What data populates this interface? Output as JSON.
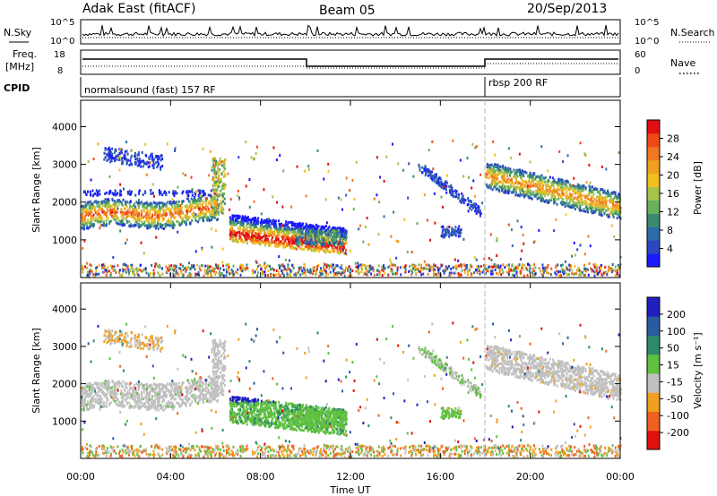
{
  "header": {
    "station": "Adak East (fitACF)",
    "beam": "Beam 05",
    "date": "20/Sep/2013"
  },
  "top_panels": {
    "nsky_label": "N.Sky",
    "nsearch_label": "N.Search",
    "nsky_ticks": [
      "10^5",
      "10^0"
    ],
    "nsearch_ticks": [
      "10^5",
      "10^0"
    ],
    "freq_label": "Freq.",
    "freq_unit": "[MHz]",
    "freq_ticks": [
      "18",
      "8"
    ],
    "nave_label": "Nave",
    "nave_ticks": [
      "60",
      "0"
    ],
    "cpid_label": "CPID",
    "cpid_modes": [
      "normalsound (fast) 157 RF",
      "rbsp 200 RF"
    ]
  },
  "chart_data": [
    {
      "type": "heatmap",
      "name": "power",
      "xlabel": "Time UT",
      "ylabel": "Slant Range [km]",
      "x_ticks": [
        "00:00",
        "04:00",
        "08:00",
        "12:00",
        "16:00",
        "20:00",
        "00:00"
      ],
      "y_ticks": [
        "1000",
        "2000",
        "3000",
        "4000"
      ],
      "ylim": [
        0,
        4700
      ],
      "colorbar": {
        "label": "Power [dB]",
        "ticks": [
          "4",
          "8",
          "12",
          "16",
          "20",
          "24",
          "28"
        ],
        "colors": [
          "#1a1aff",
          "#2a46c0",
          "#2f6aa8",
          "#3a8a70",
          "#67b25a",
          "#a7c34a",
          "#f0c020",
          "#f0a020",
          "#f07820",
          "#f04a18",
          "#e01010"
        ]
      },
      "regions": [
        {
          "t0": 0.0,
          "t1": 6.0,
          "r0": 1400,
          "r1": 2100,
          "level": "medium-high"
        },
        {
          "t0": 6.6,
          "t1": 11.8,
          "r0": 700,
          "r1": 1400,
          "level": "high"
        },
        {
          "t0": 18.0,
          "t1": 24.0,
          "r0": 1800,
          "r1": 3000,
          "level": "medium"
        }
      ]
    },
    {
      "type": "heatmap",
      "name": "velocity",
      "xlabel": "Time UT",
      "ylabel": "Slant Range [km]",
      "x_ticks": [
        "00:00",
        "04:00",
        "08:00",
        "12:00",
        "16:00",
        "20:00",
        "00:00"
      ],
      "y_ticks": [
        "1000",
        "2000",
        "3000",
        "4000"
      ],
      "ylim": [
        0,
        4700
      ],
      "colorbar": {
        "label": "Velocity [m s⁻¹]",
        "ticks": [
          "200",
          "100",
          "50",
          "15",
          "-15",
          "-50",
          "-100",
          "-200"
        ],
        "colors": [
          "#2020c0",
          "#2a5aa0",
          "#2f8a6a",
          "#60c040",
          "#c0c0c0",
          "#f0a020",
          "#f06020",
          "#e01010"
        ]
      }
    }
  ],
  "colors": {
    "axis": "#000000",
    "grey_scatter": "#bdbdb5",
    "ground_scatter_grey": "#c0c0c0"
  }
}
